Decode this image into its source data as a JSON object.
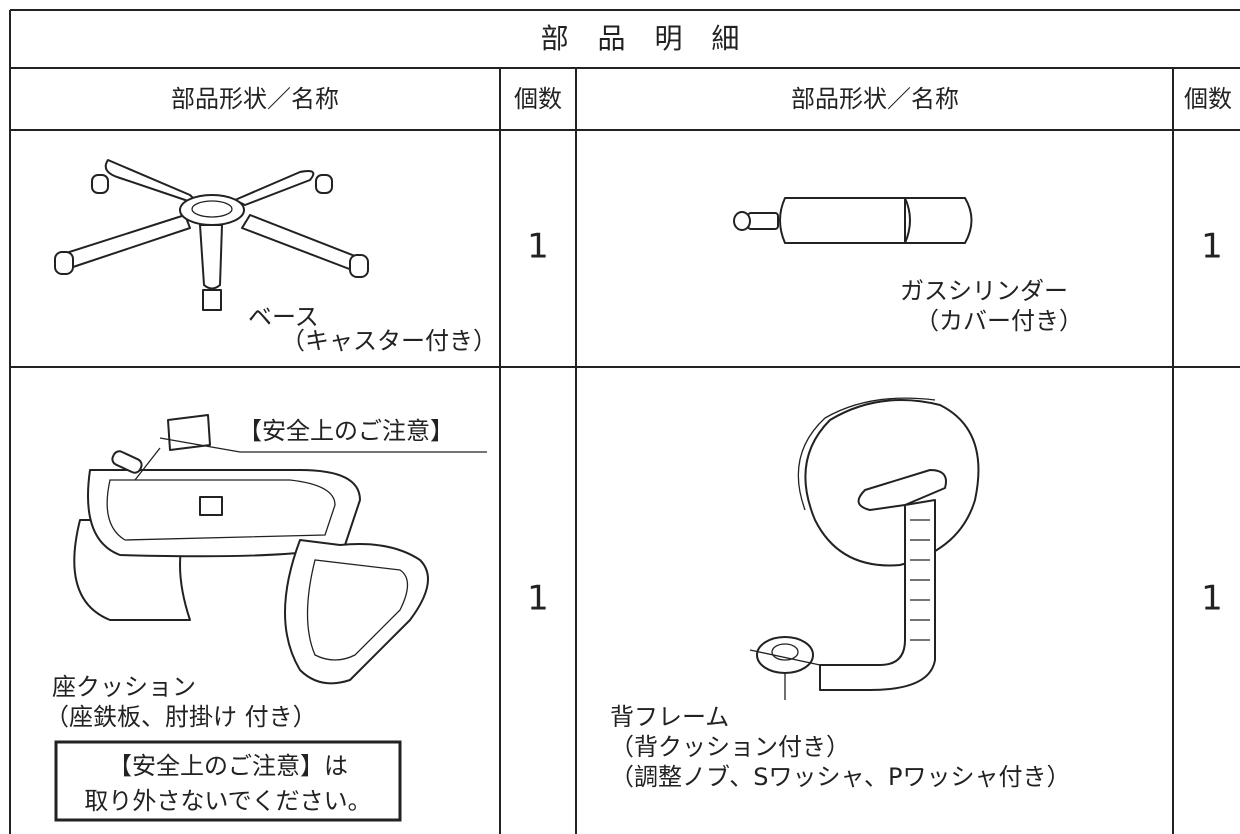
{
  "header": {
    "title": "部 品 明 細"
  },
  "table": {
    "columns": [
      "部品形状／名称",
      "個数",
      "部品形状／名称",
      "個数"
    ],
    "rows": [
      {
        "left": {
          "lines": [
            "ベース",
            "（キャスター付き）"
          ],
          "count": 1
        },
        "right": {
          "lines": [
            "ガスシリンダー",
            "（カバー付き）"
          ],
          "count": 1
        }
      },
      {
        "left": {
          "callout": "【安全上のご注意】",
          "lines": [
            "座クッション",
            "（座鉄板、肘掛け 付き）"
          ],
          "note": [
            "【安全上のご注意】は",
            "取り外さないでください。"
          ],
          "count": 1
        },
        "right": {
          "lines": [
            "背フレーム",
            "（背クッション付き）",
            "（調整ノブ、Sワッシャ、Pワッシャ付き）"
          ],
          "count": 1
        }
      }
    ]
  }
}
